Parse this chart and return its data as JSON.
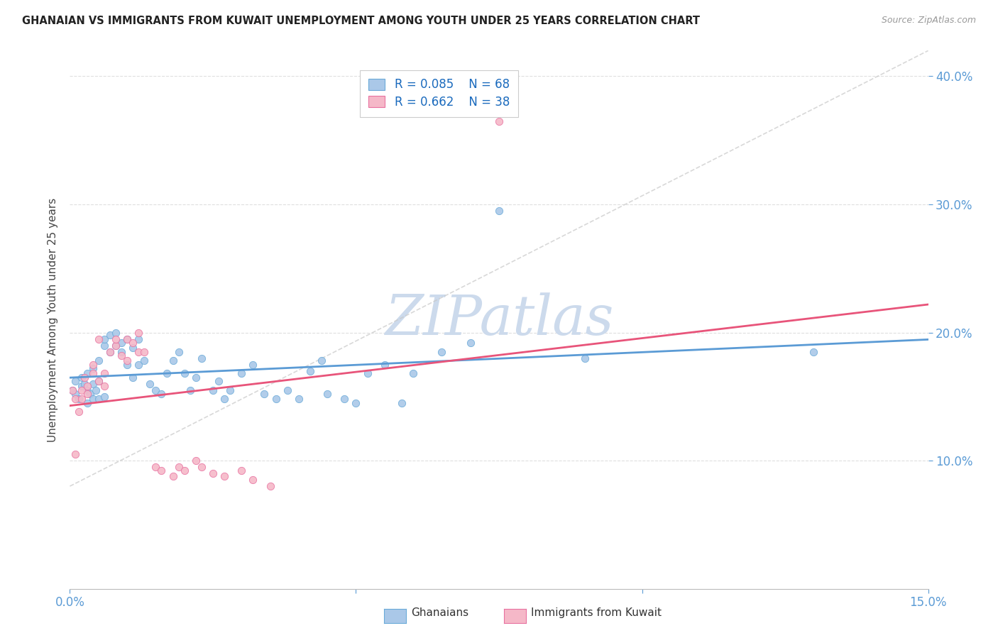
{
  "title": "GHANAIAN VS IMMIGRANTS FROM KUWAIT UNEMPLOYMENT AMONG YOUTH UNDER 25 YEARS CORRELATION CHART",
  "source": "Source: ZipAtlas.com",
  "ylabel": "Unemployment Among Youth under 25 years",
  "xlim": [
    0.0,
    0.15
  ],
  "ylim": [
    0.0,
    0.42
  ],
  "color_ghanaian_fill": "#aac8e8",
  "color_ghanaian_edge": "#6aaad8",
  "color_kuwait_fill": "#f5b8c8",
  "color_kuwait_edge": "#e870a0",
  "color_line_ghanaian": "#5b9bd5",
  "color_line_kuwait": "#e8547a",
  "color_diag": "#c8c8c8",
  "color_title": "#222222",
  "color_source": "#999999",
  "color_legend_text": "#1a6abd",
  "color_axis_label": "#5b9bd5",
  "color_ylabel": "#444444",
  "color_grid": "#d8d8d8",
  "watermark_color": "#ccdaec",
  "background_color": "#ffffff",
  "legend_r1": "R = 0.085",
  "legend_n1": "N = 68",
  "legend_r2": "R = 0.662",
  "legend_n2": "N = 38",
  "ghanaian_x": [
    0.0005,
    0.001,
    0.001,
    0.0015,
    0.002,
    0.002,
    0.0025,
    0.003,
    0.003,
    0.003,
    0.0035,
    0.004,
    0.004,
    0.004,
    0.0045,
    0.005,
    0.005,
    0.005,
    0.006,
    0.006,
    0.006,
    0.007,
    0.007,
    0.008,
    0.008,
    0.009,
    0.009,
    0.01,
    0.01,
    0.011,
    0.011,
    0.012,
    0.012,
    0.013,
    0.014,
    0.015,
    0.016,
    0.017,
    0.018,
    0.019,
    0.02,
    0.021,
    0.022,
    0.023,
    0.025,
    0.026,
    0.027,
    0.028,
    0.03,
    0.032,
    0.034,
    0.036,
    0.038,
    0.04,
    0.042,
    0.044,
    0.045,
    0.048,
    0.05,
    0.052,
    0.055,
    0.058,
    0.06,
    0.065,
    0.07,
    0.075,
    0.09,
    0.13
  ],
  "ghanaian_y": [
    0.155,
    0.152,
    0.162,
    0.148,
    0.158,
    0.165,
    0.16,
    0.145,
    0.155,
    0.168,
    0.152,
    0.148,
    0.16,
    0.172,
    0.155,
    0.148,
    0.162,
    0.178,
    0.19,
    0.195,
    0.15,
    0.185,
    0.198,
    0.19,
    0.2,
    0.192,
    0.185,
    0.175,
    0.195,
    0.188,
    0.165,
    0.175,
    0.195,
    0.178,
    0.16,
    0.155,
    0.152,
    0.168,
    0.178,
    0.185,
    0.168,
    0.155,
    0.165,
    0.18,
    0.155,
    0.162,
    0.148,
    0.155,
    0.168,
    0.175,
    0.152,
    0.148,
    0.155,
    0.148,
    0.17,
    0.178,
    0.152,
    0.148,
    0.145,
    0.168,
    0.175,
    0.145,
    0.168,
    0.185,
    0.192,
    0.295,
    0.18,
    0.185
  ],
  "kuwait_x": [
    0.0005,
    0.001,
    0.001,
    0.0015,
    0.002,
    0.002,
    0.0025,
    0.003,
    0.003,
    0.004,
    0.004,
    0.005,
    0.005,
    0.006,
    0.006,
    0.007,
    0.008,
    0.008,
    0.009,
    0.01,
    0.01,
    0.011,
    0.012,
    0.012,
    0.013,
    0.015,
    0.016,
    0.018,
    0.019,
    0.02,
    0.022,
    0.023,
    0.025,
    0.027,
    0.03,
    0.032,
    0.035,
    0.075
  ],
  "kuwait_y": [
    0.155,
    0.105,
    0.148,
    0.138,
    0.148,
    0.155,
    0.165,
    0.152,
    0.158,
    0.168,
    0.175,
    0.162,
    0.195,
    0.158,
    0.168,
    0.185,
    0.19,
    0.195,
    0.182,
    0.178,
    0.195,
    0.192,
    0.185,
    0.2,
    0.185,
    0.095,
    0.092,
    0.088,
    0.095,
    0.092,
    0.1,
    0.095,
    0.09,
    0.088,
    0.092,
    0.085,
    0.08,
    0.365
  ]
}
